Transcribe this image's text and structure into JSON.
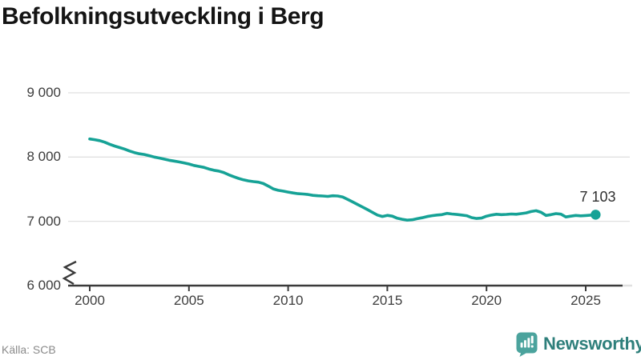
{
  "title": "Befolkningsutveckling i Berg",
  "source": "Källa: SCB",
  "brand": {
    "name": "Newsworthy"
  },
  "end_label": "7 103",
  "colors": {
    "line": "#16a296",
    "dot": "#16a296",
    "grid": "#e0e0e0",
    "axis": "#3a3a3a",
    "tick_text": "#3d3d3d",
    "muted_text": "#8a8a8a",
    "title_text": "#141414",
    "brand_icon": "#4ba39d",
    "brand_text": "#2e7f7b"
  },
  "chart_data": {
    "type": "line",
    "title": "Befolkningsutveckling i Berg",
    "xlabel": "",
    "ylabel": "",
    "ylim": [
      6000,
      9300
    ],
    "axis_break": true,
    "grid": "horizontal",
    "legend": "none",
    "x_start": 2000,
    "x_step": 0.25,
    "x_end": 2025.5,
    "y_ticks": [
      {
        "value": 9000,
        "label": "9 000"
      },
      {
        "value": 8000,
        "label": "8 000"
      },
      {
        "value": 7000,
        "label": "7 000"
      },
      {
        "value": 6000,
        "label": "6 000"
      }
    ],
    "x_ticks": [
      {
        "value": 2000,
        "label": "2000"
      },
      {
        "value": 2005,
        "label": "2005"
      },
      {
        "value": 2010,
        "label": "2010"
      },
      {
        "value": 2015,
        "label": "2015"
      },
      {
        "value": 2020,
        "label": "2020"
      },
      {
        "value": 2025,
        "label": "2025"
      }
    ],
    "series_name": "Befolkning i Berg",
    "latest_value": 7103,
    "values": [
      8282,
      8270,
      8255,
      8232,
      8200,
      8172,
      8148,
      8125,
      8095,
      8070,
      8052,
      8040,
      8022,
      8000,
      7985,
      7968,
      7950,
      7938,
      7925,
      7910,
      7892,
      7870,
      7855,
      7840,
      7815,
      7795,
      7782,
      7760,
      7725,
      7695,
      7668,
      7645,
      7630,
      7618,
      7610,
      7588,
      7548,
      7505,
      7482,
      7470,
      7455,
      7442,
      7430,
      7425,
      7418,
      7404,
      7398,
      7394,
      7388,
      7398,
      7394,
      7378,
      7340,
      7302,
      7262,
      7222,
      7182,
      7140,
      7098,
      7075,
      7093,
      7080,
      7048,
      7032,
      7018,
      7024,
      7040,
      7056,
      7074,
      7088,
      7098,
      7104,
      7124,
      7114,
      7106,
      7098,
      7088,
      7058,
      7044,
      7050,
      7080,
      7098,
      7110,
      7104,
      7108,
      7114,
      7110,
      7120,
      7132,
      7152,
      7165,
      7140,
      7092,
      7104,
      7120,
      7112,
      7068,
      7080,
      7092,
      7086,
      7090,
      7096,
      7103
    ]
  }
}
